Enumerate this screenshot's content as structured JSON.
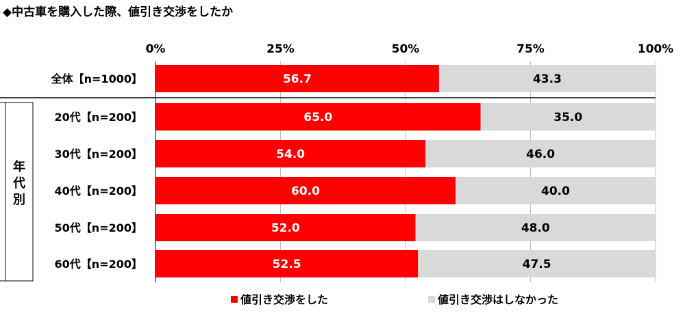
{
  "title": "◆中古車を購入した際、値引き交渉をしたか",
  "chart_data": {
    "type": "bar",
    "stacked": true,
    "orientation": "horizontal",
    "percent": true,
    "xlim": [
      0,
      100
    ],
    "xticks": [
      "0%",
      "25%",
      "50%",
      "75%",
      "100%"
    ],
    "group_label": "年代別",
    "categories": [
      "全体【n=1000】",
      "20代【n=200】",
      "30代【n=200】",
      "40代【n=200】",
      "50代【n=200】",
      "60代【n=200】"
    ],
    "series": [
      {
        "name": "値引き交渉をした",
        "color": "#ff0000",
        "values": [
          56.7,
          65.0,
          54.0,
          60.0,
          52.0,
          52.5
        ]
      },
      {
        "name": "値引き交渉はしなかった",
        "color": "#d9d9d9",
        "values": [
          43.3,
          35.0,
          46.0,
          40.0,
          48.0,
          47.5
        ]
      }
    ],
    "grid": true,
    "legend": "bottom"
  }
}
